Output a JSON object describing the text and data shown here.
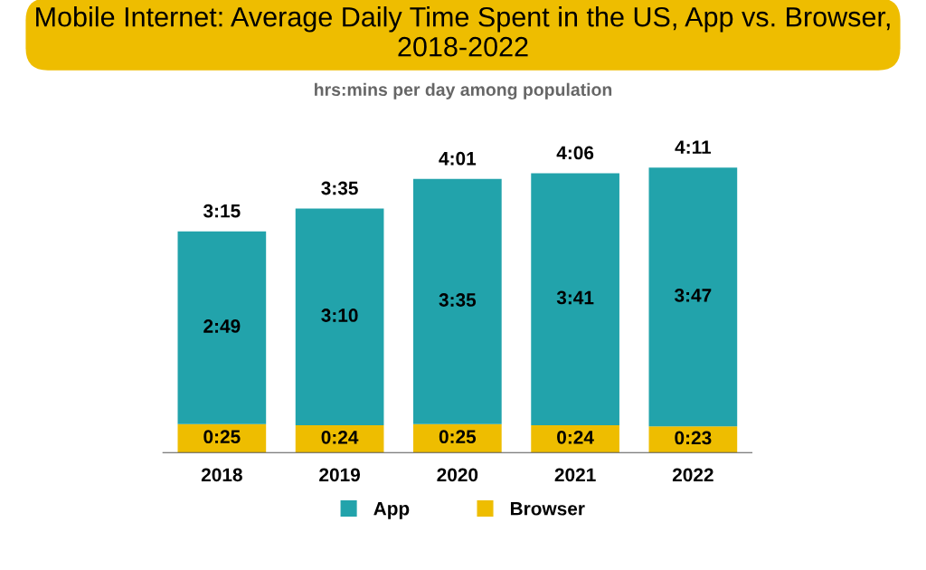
{
  "chart_data": {
    "type": "bar",
    "title": "Mobile Internet: Average Daily Time Spent in the US, App vs. Browser, 2018-2022",
    "subtitle": "hrs:mins per day among population",
    "categories": [
      "2018",
      "2019",
      "2020",
      "2021",
      "2022"
    ],
    "stacked": true,
    "series": [
      {
        "name": "Browser",
        "color": "#eebd00",
        "values": [
          25,
          24,
          25,
          24,
          23
        ],
        "value_labels": [
          "0:25",
          "0:24",
          "0:25",
          "0:24",
          "0:23"
        ]
      },
      {
        "name": "App",
        "color": "#22a3ab",
        "values": [
          169,
          190,
          215,
          221,
          227
        ],
        "value_labels": [
          "2:49",
          "3:10",
          "3:35",
          "3:41",
          "3:47"
        ]
      }
    ],
    "totals": [
      "3:15",
      "3:35",
      "4:01",
      "4:06",
      "4:11"
    ],
    "legend": "bottom",
    "grid": false
  }
}
